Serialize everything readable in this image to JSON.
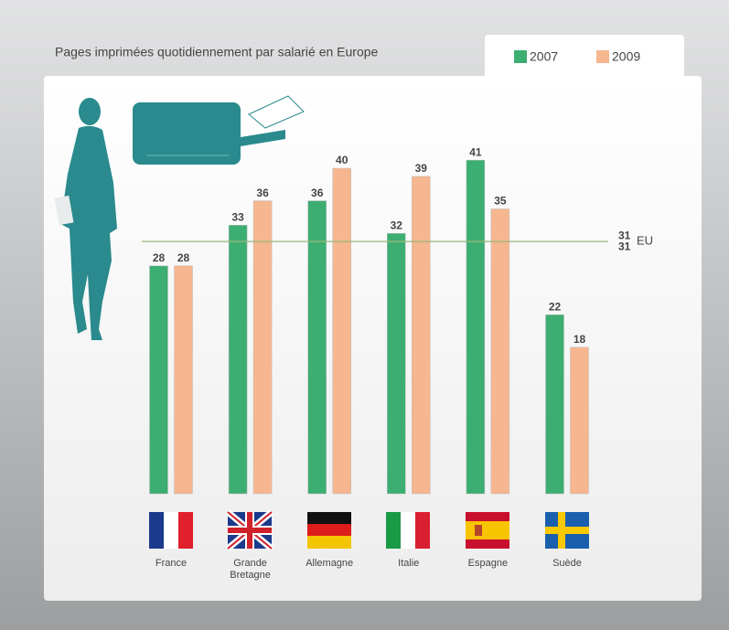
{
  "chart_data": {
    "type": "bar",
    "title": "Pages imprimées quotidiennement par salarié en Europe",
    "categories": [
      "France",
      "Grande Bretagne",
      "Allemagne",
      "Italie",
      "Espagne",
      "Suède"
    ],
    "series": [
      {
        "name": "2007",
        "color": "#3cae72",
        "values": [
          28,
          33,
          36,
          32,
          41,
          22
        ]
      },
      {
        "name": "2009",
        "color": "#f6b68f",
        "values": [
          28,
          36,
          40,
          39,
          35,
          18
        ]
      }
    ],
    "reference": {
      "name": "EU",
      "color": "#9cb67c",
      "values": [
        31,
        31
      ]
    }
  }
}
